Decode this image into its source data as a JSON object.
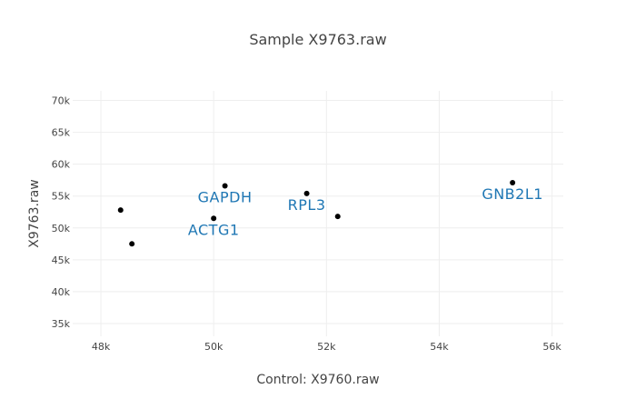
{
  "chart_data": {
    "type": "scatter",
    "title": "Sample X9763.raw",
    "xlabel": "Control: X9760.raw",
    "ylabel": "X9763.raw",
    "xlim": [
      47500,
      56200
    ],
    "ylim": [
      33000,
      71500
    ],
    "grid": true,
    "x_ticks": [
      {
        "value": 48000,
        "label": "48k"
      },
      {
        "value": 50000,
        "label": "50k"
      },
      {
        "value": 52000,
        "label": "52k"
      },
      {
        "value": 54000,
        "label": "54k"
      },
      {
        "value": 56000,
        "label": "56k"
      }
    ],
    "y_ticks": [
      {
        "value": 35000,
        "label": "35k"
      },
      {
        "value": 40000,
        "label": "40k"
      },
      {
        "value": 45000,
        "label": "45k"
      },
      {
        "value": 50000,
        "label": "50k"
      },
      {
        "value": 55000,
        "label": "55k"
      },
      {
        "value": 60000,
        "label": "60k"
      },
      {
        "value": 65000,
        "label": "65k"
      },
      {
        "value": 70000,
        "label": "70k"
      }
    ],
    "points": [
      {
        "x": 48350,
        "y": 52800,
        "label": ""
      },
      {
        "x": 48550,
        "y": 47500,
        "label": ""
      },
      {
        "x": 50000,
        "y": 51500,
        "label": "ACTG1"
      },
      {
        "x": 50200,
        "y": 56600,
        "label": "GAPDH"
      },
      {
        "x": 51650,
        "y": 55400,
        "label": "RPL3"
      },
      {
        "x": 52200,
        "y": 51800,
        "label": ""
      },
      {
        "x": 55300,
        "y": 57100,
        "label": "GNB2L1"
      }
    ],
    "colors": {
      "point": "#000000",
      "label": "#1f77b4",
      "grid": "#eeeeee",
      "text": "#444444"
    }
  }
}
